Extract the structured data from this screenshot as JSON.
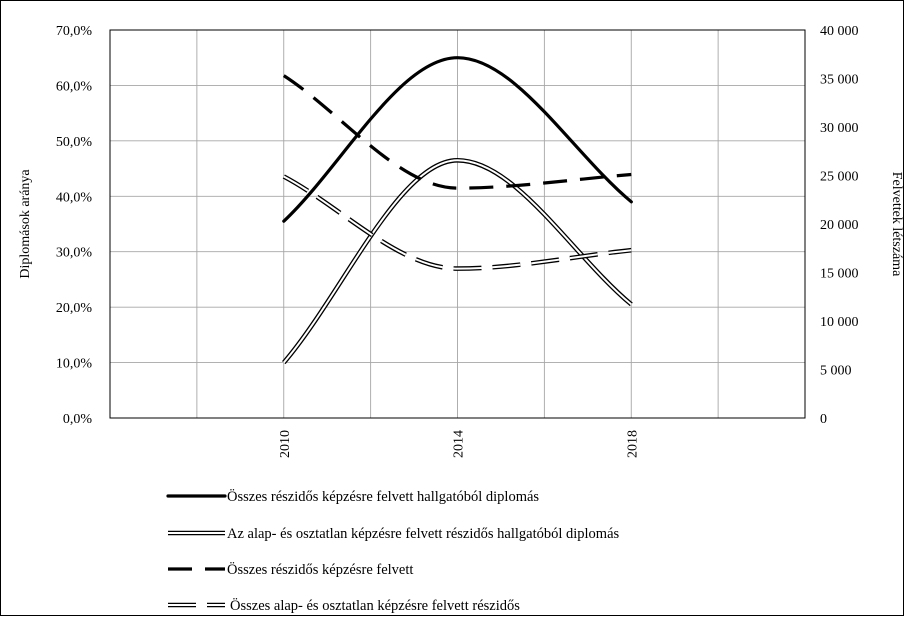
{
  "chart_data": {
    "type": "line",
    "title": "",
    "x": [
      2010,
      2014,
      2018
    ],
    "xlim": [
      2006,
      2022
    ],
    "x_ticks": [
      "2010",
      "2014",
      "2018"
    ],
    "ylabel_left": "Diplomások aránya",
    "ylabel_right": "Felvettek létszáma",
    "ylim_left": [
      0,
      0.7
    ],
    "ylim_right": [
      0,
      40000
    ],
    "y_ticks_left": [
      "0,0%",
      "10,0%",
      "20,0%",
      "30,0%",
      "40,0%",
      "50,0%",
      "60,0%",
      "70,0%"
    ],
    "y_ticks_right": [
      "0",
      "5 000",
      "10 000",
      "15 000",
      "20 000",
      "25 000",
      "30 000",
      "35 000",
      "40 000"
    ],
    "grid": true,
    "legend_position": "bottom",
    "series": [
      {
        "name": "Összes részidős képzésre felvett hallgatóból diplomás",
        "axis": "left",
        "style": "solid-thick",
        "values": [
          0.355,
          0.65,
          0.39
        ]
      },
      {
        "name": "Az alap- és osztatlan képzésre felvett részidős hallgatóból diplomás",
        "axis": "left",
        "style": "double",
        "values": [
          0.1,
          0.465,
          0.205
        ]
      },
      {
        "name": "Összes részidős képzésre felvett",
        "axis": "right",
        "style": "dashed-thick",
        "values": [
          35300,
          23700,
          25100
        ]
      },
      {
        "name": "Összes alap- és osztatlan képzésre felvett részidős",
        "axis": "right",
        "style": "double-dashed",
        "values": [
          24900,
          15400,
          17300
        ]
      }
    ]
  }
}
